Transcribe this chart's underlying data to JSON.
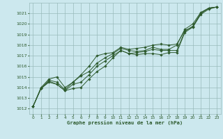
{
  "title": "Graphe pression niveau de la mer (hPa)",
  "background_color": "#cce8ee",
  "grid_color": "#99bbbb",
  "line_color": "#2d5a2d",
  "marker_color": "#2d5a2d",
  "xlim": [
    -0.5,
    23.5
  ],
  "ylim": [
    1011.5,
    1022.0
  ],
  "xticks": [
    0,
    1,
    2,
    3,
    4,
    5,
    6,
    7,
    8,
    9,
    10,
    11,
    12,
    13,
    14,
    15,
    16,
    17,
    18,
    19,
    20,
    21,
    22,
    23
  ],
  "yticks": [
    1012,
    1013,
    1014,
    1015,
    1016,
    1017,
    1018,
    1019,
    1020,
    1021
  ],
  "series": [
    [
      1012.2,
      1013.9,
      1014.5,
      1014.3,
      1013.7,
      1013.9,
      1014.0,
      1014.8,
      1015.5,
      1016.0,
      1016.8,
      1017.5,
      1017.2,
      1017.1,
      1017.2,
      1017.2,
      1017.1,
      1017.3,
      1017.3,
      1019.2,
      1019.7,
      1020.9,
      1021.4,
      1021.6
    ],
    [
      1012.2,
      1013.9,
      1014.6,
      1014.3,
      1013.7,
      1014.3,
      1014.5,
      1015.2,
      1016.0,
      1016.5,
      1017.0,
      1017.5,
      1017.2,
      1017.3,
      1017.4,
      1017.6,
      1017.5,
      1017.5,
      1017.5,
      1019.3,
      1019.8,
      1021.0,
      1021.5,
      1021.6
    ],
    [
      1012.2,
      1013.9,
      1014.7,
      1014.5,
      1013.8,
      1014.5,
      1015.1,
      1015.5,
      1016.3,
      1016.8,
      1017.2,
      1017.7,
      1017.5,
      1017.4,
      1017.5,
      1017.8,
      1017.6,
      1017.6,
      1018.0,
      1019.5,
      1020.0,
      1021.1,
      1021.5,
      1021.6
    ],
    [
      1012.2,
      1014.0,
      1014.8,
      1015.0,
      1014.0,
      1014.5,
      1015.2,
      1016.0,
      1017.0,
      1017.2,
      1017.3,
      1017.8,
      1017.6,
      1017.7,
      1017.8,
      1018.0,
      1018.1,
      1018.0,
      1018.1,
      1019.4,
      1019.7,
      1021.0,
      1021.5,
      1021.6
    ]
  ]
}
